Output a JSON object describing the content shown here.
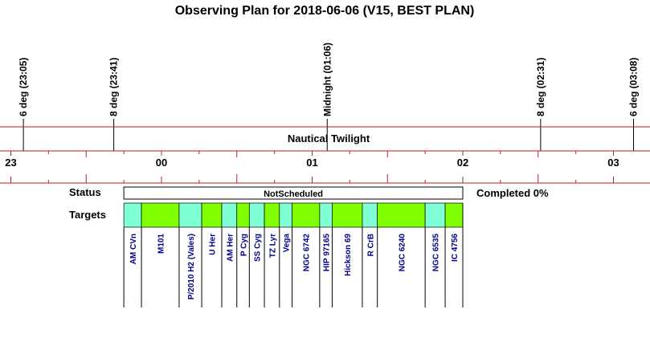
{
  "chart_data": {
    "type": "timeline",
    "title": "Observing Plan for 2018-06-06 (V15, BEST PLAN)",
    "time_axis": {
      "start_hour": 22.85,
      "end_hour": 27.3,
      "tick_labels": [
        "23",
        "00",
        "01",
        "02",
        "03"
      ]
    },
    "events": [
      {
        "label": "6 deg (23:05)",
        "hour": 23.0833
      },
      {
        "label": "8 deg (23:41)",
        "hour": 23.6833
      },
      {
        "label": "Midnight (01:06)",
        "hour": 25.1
      },
      {
        "label": "8 deg (02:31)",
        "hour": 26.5167
      },
      {
        "label": "6 deg (03:08)",
        "hour": 27.1333
      }
    ],
    "band_label": "Nautical Twilight",
    "status": {
      "row_label": "Status",
      "text": "NotScheduled",
      "completion": "Completed 0%",
      "start_hour": 23.75,
      "end_hour": 26.0
    },
    "targets_row_label": "Targets",
    "targets": [
      {
        "name": "AM CVn",
        "start_hour": 23.75,
        "end_hour": 23.867,
        "color": "#7fffd4"
      },
      {
        "name": "M101",
        "start_hour": 23.867,
        "end_hour": 24.117,
        "color": "#7fff00"
      },
      {
        "name": "P/2010 H2 (Vales)",
        "start_hour": 24.117,
        "end_hour": 24.267,
        "color": "#7fffd4"
      },
      {
        "name": "U Her",
        "start_hour": 24.267,
        "end_hour": 24.4,
        "color": "#7fff00"
      },
      {
        "name": "AM Her",
        "start_hour": 24.4,
        "end_hour": 24.5,
        "color": "#7fffd4"
      },
      {
        "name": "P Cyg",
        "start_hour": 24.5,
        "end_hour": 24.583,
        "color": "#7fff00"
      },
      {
        "name": "SS Cyg",
        "start_hour": 24.583,
        "end_hour": 24.683,
        "color": "#7fffd4"
      },
      {
        "name": "TZ Lyr",
        "start_hour": 24.683,
        "end_hour": 24.783,
        "color": "#7fff00"
      },
      {
        "name": "Vega",
        "start_hour": 24.783,
        "end_hour": 24.867,
        "color": "#7fffd4"
      },
      {
        "name": "NGC 6742",
        "start_hour": 24.867,
        "end_hour": 25.05,
        "color": "#7fff00"
      },
      {
        "name": "HIP 97165",
        "start_hour": 25.05,
        "end_hour": 25.133,
        "color": "#7fffd4"
      },
      {
        "name": "Hickson 69",
        "start_hour": 25.133,
        "end_hour": 25.333,
        "color": "#7fff00"
      },
      {
        "name": "R CrB",
        "start_hour": 25.333,
        "end_hour": 25.433,
        "color": "#7fffd4"
      },
      {
        "name": "NGC 6240",
        "start_hour": 25.433,
        "end_hour": 25.75,
        "color": "#7fff00"
      },
      {
        "name": "NGC 6535",
        "start_hour": 25.75,
        "end_hour": 25.883,
        "color": "#7fffd4"
      },
      {
        "name": "IC 4756",
        "start_hour": 25.883,
        "end_hour": 26.0,
        "color": "#7fff00"
      }
    ],
    "colors": {
      "axis": "#b22222",
      "target_text": "#00008b",
      "status_fill": "#ffffff"
    }
  }
}
